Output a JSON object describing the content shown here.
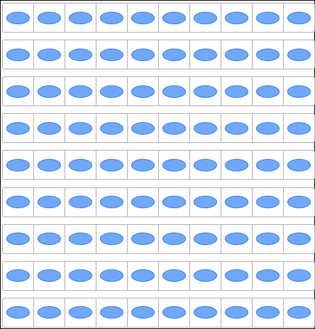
{
  "diagram": {
    "rows": 9,
    "columns": 10,
    "filled_cells_per_row": [
      10,
      10,
      10,
      10,
      10,
      10,
      10,
      10,
      10
    ],
    "shape": "oval",
    "colors": {
      "oval_fill": "#6fa8ff",
      "oval_stroke": "#3f7fe6",
      "grid_line": "#b0b0b0",
      "frame": "#000000"
    }
  }
}
